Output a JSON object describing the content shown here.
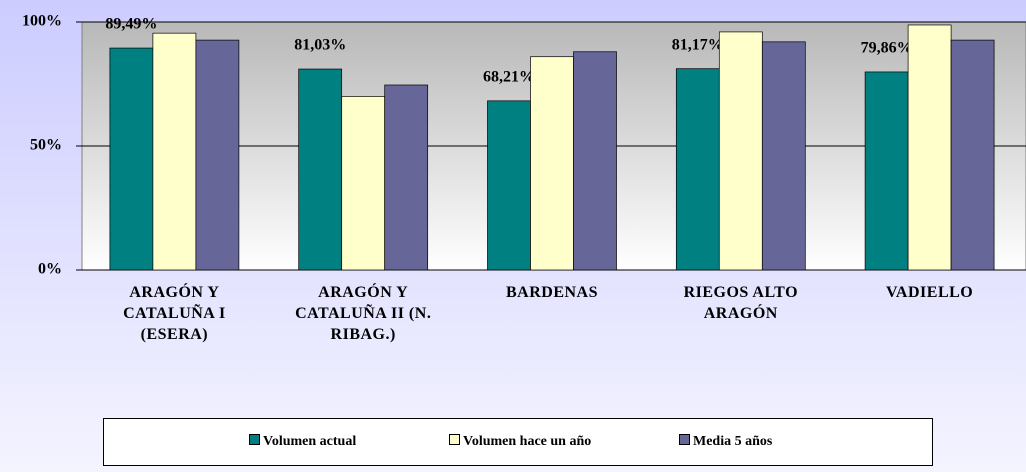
{
  "chart_data": {
    "type": "bar",
    "categories": [
      "ARAGÓN Y CATALUÑA I (ESERA)",
      "ARAGÓN Y CATALUÑA II (N. RIBAG.)",
      "BARDENAS",
      "RIEGOS ALTO ARAGÓN",
      "VADIELLO"
    ],
    "series": [
      {
        "name": "Volumen actual",
        "color": "#008080",
        "values": [
          89.49,
          81.03,
          68.21,
          81.17,
          79.86
        ],
        "value_labels": [
          "89,49%",
          "81,03%",
          "68,21%",
          "81,17%",
          "79,86%"
        ]
      },
      {
        "name": "Volumen hace un año",
        "color": "#ffffcc",
        "values": [
          95.5,
          70,
          86,
          96,
          98.8
        ]
      },
      {
        "name": "Media 5 años",
        "color": "#666699",
        "values": [
          92.7,
          74.6,
          88,
          92,
          92.7
        ]
      }
    ],
    "ylim": [
      0,
      100
    ],
    "yticks": [
      {
        "value": 0,
        "label": "0%"
      },
      {
        "value": 50,
        "label": "50%"
      },
      {
        "value": 100,
        "label": "100%"
      }
    ],
    "grid": true,
    "legend": "bottom"
  }
}
